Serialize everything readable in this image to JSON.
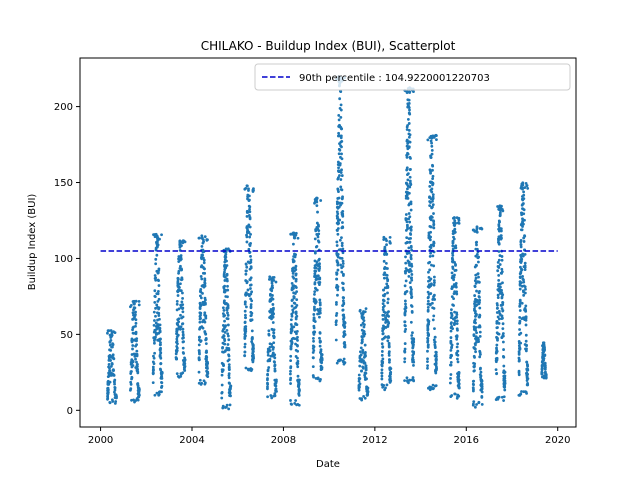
{
  "chart_data": {
    "type": "scatter",
    "title": "CHILAKO - Buildup Index (BUI), Scatterplot",
    "xlabel": "Date",
    "ylabel": "Buildup Index (BUI)",
    "xlim": [
      1999.1,
      2020.8
    ],
    "ylim": [
      -11,
      232
    ],
    "xticks": [
      2000,
      2004,
      2008,
      2012,
      2016,
      2020
    ],
    "xtick_labels": [
      "2000",
      "2004",
      "2008",
      "2012",
      "2016",
      "2020"
    ],
    "yticks": [
      0,
      50,
      100,
      150,
      200
    ],
    "ytick_labels": [
      "0",
      "50",
      "100",
      "150",
      "200"
    ],
    "grid": false,
    "legend": {
      "location": "upper right",
      "entries": [
        "90th percentile : 104.9220001220703"
      ]
    },
    "series": [
      {
        "name": "",
        "marker": "dot",
        "color": "#1f77b4",
        "fire_seasons": [
          {
            "start": 2000.3,
            "end": 2000.7,
            "low": 3,
            "high": 53
          },
          {
            "start": 2001.3,
            "end": 2001.7,
            "low": 5,
            "high": 72
          },
          {
            "start": 2002.3,
            "end": 2002.7,
            "low": 9,
            "high": 116
          },
          {
            "start": 2003.3,
            "end": 2003.7,
            "low": 21,
            "high": 112
          },
          {
            "start": 2004.3,
            "end": 2004.7,
            "low": 17,
            "high": 115
          },
          {
            "start": 2005.3,
            "end": 2005.7,
            "low": 0,
            "high": 107
          },
          {
            "start": 2006.3,
            "end": 2006.7,
            "low": 25,
            "high": 148
          },
          {
            "start": 2007.3,
            "end": 2007.7,
            "low": 8,
            "high": 88
          },
          {
            "start": 2008.3,
            "end": 2008.7,
            "low": 3,
            "high": 117
          },
          {
            "start": 2009.3,
            "end": 2009.7,
            "low": 19,
            "high": 140
          },
          {
            "start": 2010.3,
            "end": 2010.7,
            "low": 30,
            "high": 220
          },
          {
            "start": 2011.3,
            "end": 2011.7,
            "low": 6,
            "high": 67
          },
          {
            "start": 2012.3,
            "end": 2012.7,
            "low": 13,
            "high": 114
          },
          {
            "start": 2013.3,
            "end": 2013.7,
            "low": 18,
            "high": 213
          },
          {
            "start": 2014.3,
            "end": 2014.7,
            "low": 13,
            "high": 182
          },
          {
            "start": 2015.3,
            "end": 2015.7,
            "low": 7,
            "high": 127
          },
          {
            "start": 2016.3,
            "end": 2016.7,
            "low": 2,
            "high": 121
          },
          {
            "start": 2017.3,
            "end": 2017.7,
            "low": 6,
            "high": 135
          },
          {
            "start": 2018.3,
            "end": 2018.7,
            "low": 9,
            "high": 150
          },
          {
            "start": 2019.3,
            "end": 2019.5,
            "low": 20,
            "high": 45
          }
        ]
      }
    ],
    "reference_lines": [
      {
        "name": "90th percentile : 104.9220001220703",
        "y": 104.9220001220703,
        "x_range": [
          2000,
          2020
        ],
        "color": "#0000cc",
        "style": "dashed"
      }
    ]
  }
}
